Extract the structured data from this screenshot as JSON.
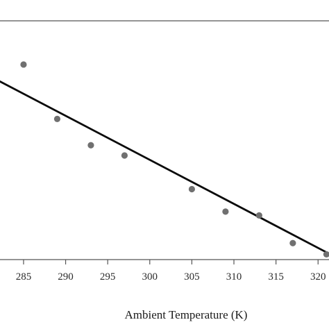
{
  "chart_data": {
    "type": "scatter",
    "xlabel": "Ambient Temperature (K)",
    "x_ticks": [
      285,
      290,
      295,
      300,
      305,
      310,
      315,
      320
    ],
    "x_tick_labels": [
      "285",
      "290",
      "295",
      "300",
      "305",
      "310",
      "315",
      "320"
    ],
    "xlim": [
      282.2,
      321.3
    ],
    "ylim": [
      0,
      100
    ],
    "grid": false,
    "legend": "none",
    "colors": {
      "points": "#707070",
      "trend_line": "#0a0a0a",
      "frame": "#555555"
    },
    "series": [
      {
        "kind": "points",
        "x": [
          285,
          289,
          293,
          297,
          305,
          309,
          313,
          317,
          321
        ],
        "y": [
          81.7,
          58.9,
          47.9,
          43.6,
          29.5,
          20.1,
          18.5,
          6.9,
          2.2
        ]
      },
      {
        "kind": "trend-line",
        "x": [
          282.2,
          321.3
        ],
        "y": [
          74.6,
          2.5
        ]
      }
    ]
  }
}
